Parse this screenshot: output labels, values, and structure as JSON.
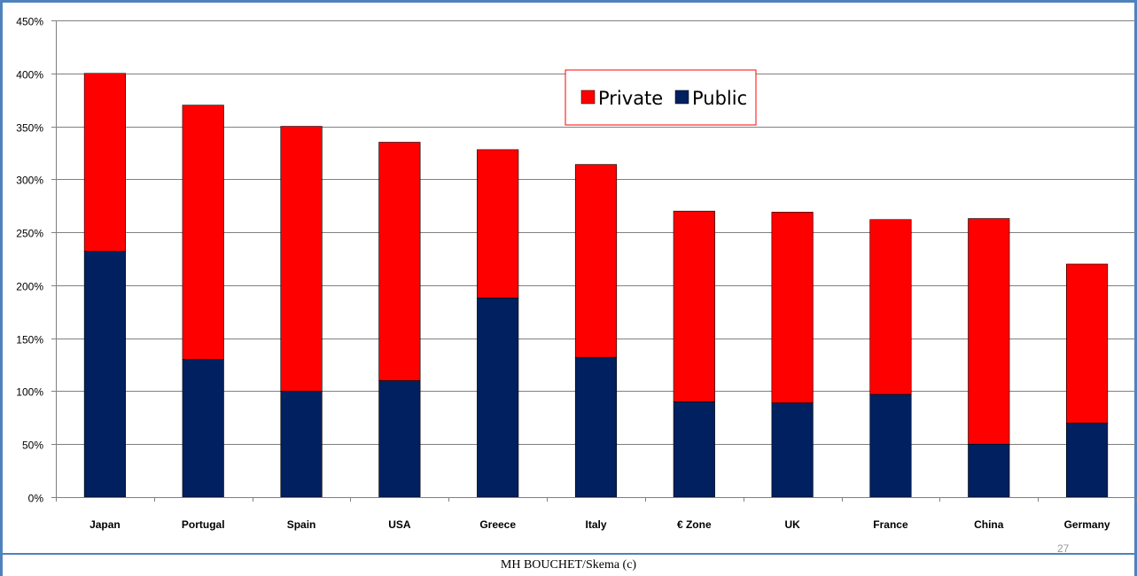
{
  "colors": {
    "private": "#ff0000",
    "public": "#002060",
    "frame": "#4f81bd",
    "grid": "#808080",
    "legend_border": "#ff0000"
  },
  "footer": {
    "credit": "MH BOUCHET/Skema (c)",
    "page_number": "27"
  },
  "chart_data": {
    "type": "bar",
    "stacked": true,
    "categories": [
      "Japan",
      "Portugal",
      "Spain",
      "USA",
      "Greece",
      "Italy",
      "€ Zone",
      "UK",
      "France",
      "China",
      "Germany"
    ],
    "series": [
      {
        "name": "Public",
        "values": [
          232,
          130,
          100,
          110,
          188,
          132,
          90,
          89,
          97,
          50,
          70
        ]
      },
      {
        "name": "Private",
        "values": [
          168,
          240,
          250,
          225,
          140,
          182,
          180,
          180,
          165,
          213,
          150
        ]
      }
    ],
    "legend_order": [
      "Private",
      "Public"
    ],
    "y_ticks": [
      "0%",
      "50%",
      "100%",
      "150%",
      "200%",
      "250%",
      "300%",
      "350%",
      "400%",
      "450%"
    ],
    "ylim": [
      0,
      450
    ],
    "y_unit": "%",
    "grid": true,
    "legend_position": "top-center"
  }
}
